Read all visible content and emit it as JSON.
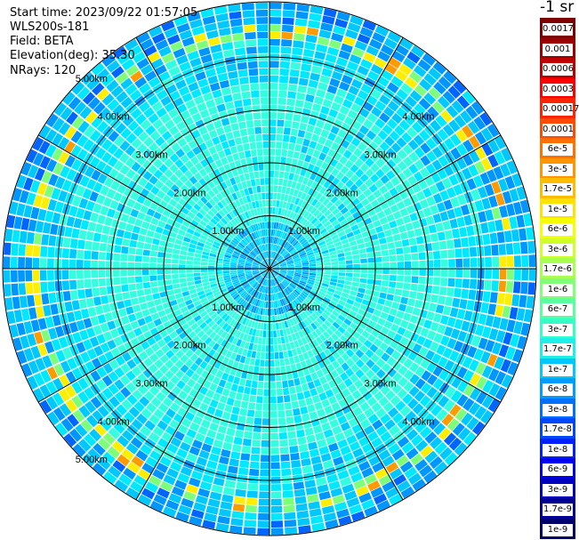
{
  "header": {
    "start_time": "Start time: 2023/09/22 01:57:05",
    "instrument": "WLS200s-181",
    "field": "Field: BETA",
    "elevation": "Elevation(deg): 35.30",
    "nrays": "NRays: 120"
  },
  "ppi": {
    "range_labels": [
      "1.00km",
      "2.00km",
      "3.00km",
      "4.00km"
    ],
    "outer_label": "5.00km",
    "n_rays": 120,
    "n_spokes": 12
  },
  "colorbar": {
    "unit": "-1 sr",
    "labels": [
      "0.0017",
      "0.001",
      "0.0006",
      "0.0003",
      "0.00017",
      "0.0001",
      "6e-5",
      "3e-5",
      "1.7e-5",
      "1e-5",
      "6e-6",
      "3e-6",
      "1.7e-6",
      "1e-6",
      "6e-7",
      "3e-7",
      "1.7e-7",
      "1e-7",
      "6e-8",
      "3e-8",
      "1.7e-8",
      "1e-8",
      "6e-9",
      "3e-9",
      "1.7e-9",
      "1e-9"
    ],
    "colors": [
      "#7f0000",
      "#9c0000",
      "#c00000",
      "#ff0000",
      "#ff2400",
      "#ff4a00",
      "#ff7000",
      "#ff9600",
      "#ffbc00",
      "#ffe200",
      "#f4ff00",
      "#d0ff27",
      "#a7ff50",
      "#80ff77",
      "#5affa0",
      "#36ffc5",
      "#1ef0e8",
      "#00c8ff",
      "#009cff",
      "#0070ff",
      "#0048ff",
      "#0020ff",
      "#0000f0",
      "#0000c0",
      "#000096",
      "#00006a"
    ]
  }
}
